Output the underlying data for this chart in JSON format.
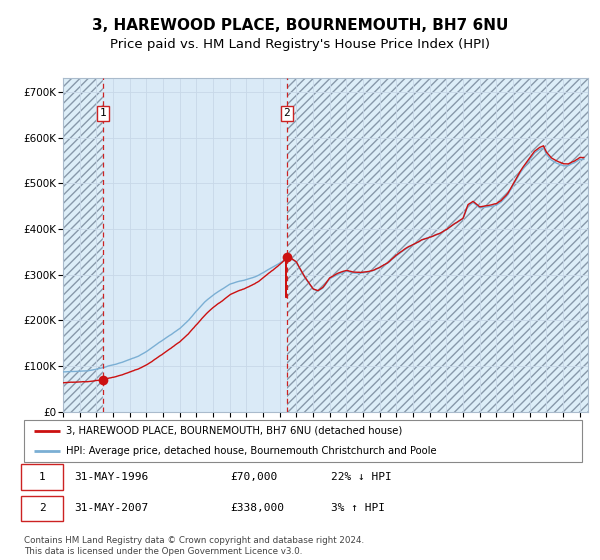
{
  "title": "3, HAREWOOD PLACE, BOURNEMOUTH, BH7 6NU",
  "subtitle": "Price paid vs. HM Land Registry's House Price Index (HPI)",
  "title_fontsize": 11,
  "subtitle_fontsize": 9.5,
  "xlim": [
    1994.0,
    2025.5
  ],
  "ylim": [
    0,
    730000
  ],
  "yticks": [
    0,
    100000,
    200000,
    300000,
    400000,
    500000,
    600000,
    700000
  ],
  "ytick_labels": [
    "£0",
    "£100K",
    "£200K",
    "£300K",
    "£400K",
    "£500K",
    "£600K",
    "£700K"
  ],
  "xticks": [
    1994,
    1995,
    1996,
    1997,
    1998,
    1999,
    2000,
    2001,
    2002,
    2003,
    2004,
    2005,
    2006,
    2007,
    2008,
    2009,
    2010,
    2011,
    2012,
    2013,
    2014,
    2015,
    2016,
    2017,
    2018,
    2019,
    2020,
    2021,
    2022,
    2023,
    2024,
    2025
  ],
  "sale1_x": 1996.42,
  "sale1_y": 70000,
  "sale1_label": "1",
  "sale2_x": 2007.42,
  "sale2_y": 338000,
  "sale2_label": "2",
  "hpi_line_color": "#7bafd4",
  "price_line_color": "#cc1111",
  "vline_color": "#cc2222",
  "bg_shaded_color": "#daeaf7",
  "grid_color": "#c8d8e8",
  "legend_line1": "3, HAREWOOD PLACE, BOURNEMOUTH, BH7 6NU (detached house)",
  "legend_line2": "HPI: Average price, detached house, Bournemouth Christchurch and Poole",
  "table_row1": [
    "1",
    "31-MAY-1996",
    "£70,000",
    "22% ↓ HPI"
  ],
  "table_row2": [
    "2",
    "31-MAY-2007",
    "£338,000",
    "3% ↑ HPI"
  ],
  "footnote": "Contains HM Land Registry data © Crown copyright and database right 2024.\nThis data is licensed under the Open Government Licence v3.0."
}
